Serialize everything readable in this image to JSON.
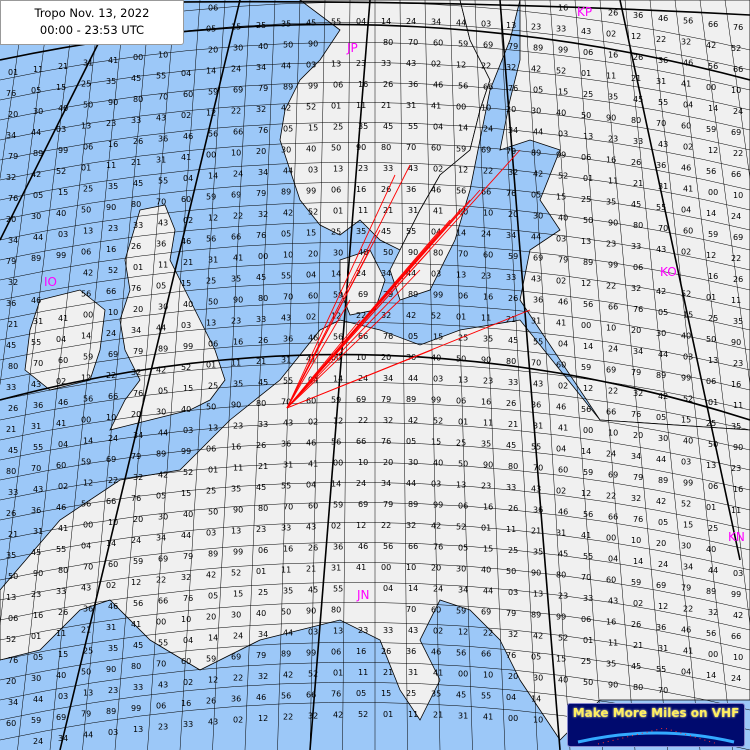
{
  "title": {
    "line1": "Tropo Nov. 13, 2022",
    "line2": "00:00 - 23:53 UTC"
  },
  "logo": {
    "text": "Make More Miles on VHF"
  },
  "colors": {
    "sea": "#9cc8f8",
    "land": "#f0f0f0",
    "grid": "#000000",
    "paths": "#ff0000",
    "field_labels": "#ff00ff"
  },
  "fields": [
    {
      "label": "JP"
    },
    {
      "label": "IO"
    },
    {
      "label": "KO"
    },
    {
      "label": "JN"
    },
    {
      "label": "KP"
    },
    {
      "label": "KN"
    }
  ],
  "squares": [
    "06",
    "16",
    "26",
    "36",
    "46",
    "56",
    "66",
    "76",
    "05",
    "15",
    "25",
    "35",
    "45",
    "55",
    "04",
    "14",
    "24",
    "34",
    "44",
    "03",
    "13",
    "23",
    "33",
    "43",
    "02",
    "12",
    "22",
    "32",
    "42",
    "52",
    "01",
    "11",
    "21",
    "31",
    "41",
    "00",
    "10",
    "20",
    "30",
    "40",
    "50",
    "90",
    "80",
    "70",
    "60",
    "59",
    "69",
    "79",
    "89",
    "99"
  ]
}
